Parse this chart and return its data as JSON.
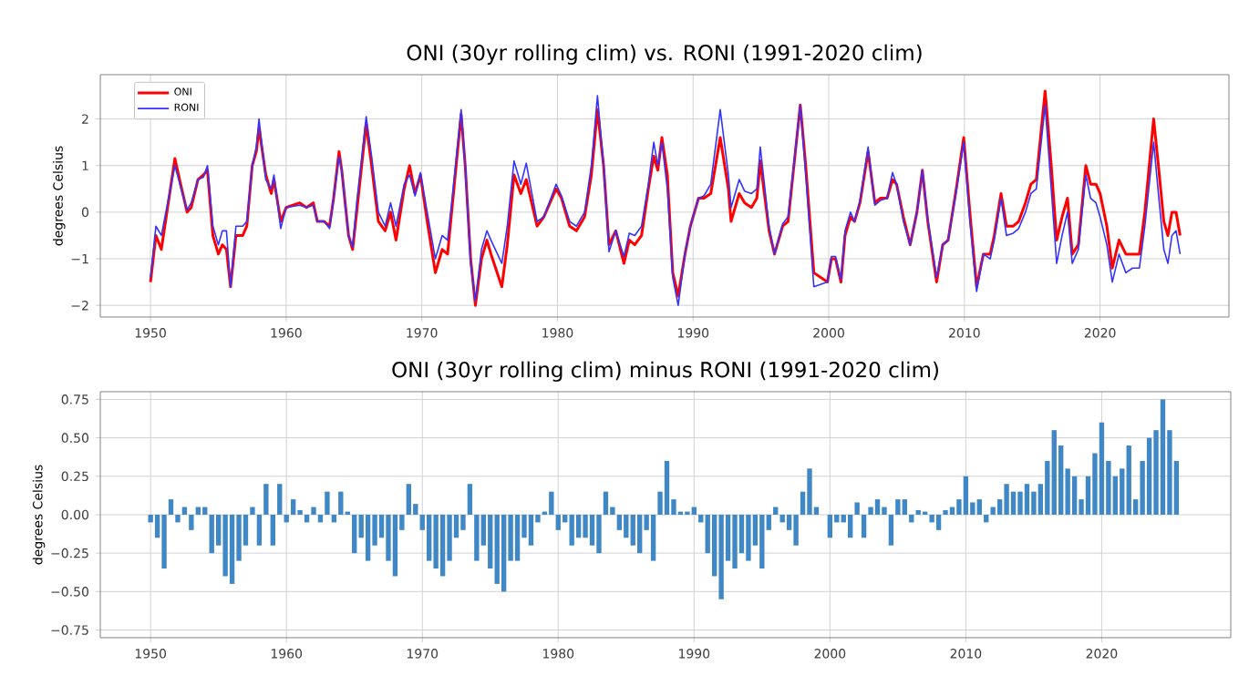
{
  "chart_data": [
    {
      "type": "line",
      "title": "ONI (30yr rolling clim) vs. RONI (1991-2020 clim)",
      "ylabel": "degrees Celsius",
      "grid": true,
      "legend": "top left",
      "xlim": [
        1946.3,
        2029.5
      ],
      "ylim": [
        -2.25,
        2.95
      ],
      "xticks": [
        1950,
        1960,
        1970,
        1980,
        1990,
        2000,
        2010,
        2020
      ],
      "yticks": [
        {
          "value": -2,
          "label": "−2"
        },
        {
          "value": -1,
          "label": "−1"
        },
        0,
        1,
        2
      ],
      "x": [
        1950.0,
        1950.4,
        1950.8,
        1951.8,
        1952.3,
        1952.7,
        1953.0,
        1953.5,
        1953.9,
        1954.2,
        1954.6,
        1955.0,
        1955.3,
        1955.6,
        1955.9,
        1956.3,
        1956.8,
        1957.1,
        1957.5,
        1957.8,
        1958.0,
        1958.5,
        1958.9,
        1959.1,
        1959.6,
        1960.0,
        1961.0,
        1961.5,
        1962.0,
        1962.3,
        1962.8,
        1963.2,
        1963.5,
        1963.9,
        1964.1,
        1964.6,
        1964.9,
        1965.2,
        1965.9,
        1966.3,
        1966.8,
        1967.3,
        1967.7,
        1968.1,
        1968.7,
        1969.1,
        1969.5,
        1969.9,
        1970.4,
        1971.0,
        1971.5,
        1971.9,
        1972.2,
        1972.9,
        1973.2,
        1973.6,
        1973.95,
        1974.4,
        1974.8,
        1975.1,
        1975.9,
        1976.3,
        1976.8,
        1977.3,
        1977.7,
        1978.5,
        1979.0,
        1979.9,
        1980.3,
        1980.9,
        1981.4,
        1982.0,
        1982.5,
        1982.95,
        1983.4,
        1983.8,
        1984.3,
        1984.9,
        1985.3,
        1985.7,
        1986.2,
        1986.7,
        1987.1,
        1987.4,
        1987.7,
        1988.1,
        1988.5,
        1988.9,
        1989.4,
        1989.8,
        1990.4,
        1990.8,
        1991.3,
        1992.0,
        1992.6,
        1992.8,
        1993.4,
        1993.8,
        1994.3,
        1994.7,
        1994.95,
        1995.6,
        1996.0,
        1996.6,
        1997.0,
        1997.9,
        1998.3,
        1998.9,
        1999.9,
        2000.2,
        2000.5,
        2000.9,
        2001.2,
        2001.6,
        2001.9,
        2002.3,
        2002.9,
        2003.4,
        2003.8,
        2004.3,
        2004.7,
        2005.0,
        2005.5,
        2006.0,
        2006.5,
        2006.9,
        2007.3,
        2007.95,
        2008.4,
        2008.8,
        2009.4,
        2009.95,
        2010.4,
        2010.9,
        2011.4,
        2011.9,
        2012.2,
        2012.7,
        2013.1,
        2013.6,
        2014.0,
        2014.5,
        2014.9,
        2015.3,
        2015.95,
        2016.4,
        2016.8,
        2017.2,
        2017.6,
        2017.95,
        2018.4,
        2018.95,
        2019.3,
        2019.7,
        2020.0,
        2020.5,
        2020.9,
        2021.4,
        2021.9,
        2022.4,
        2022.9,
        2023.3,
        2023.95,
        2024.3,
        2024.7,
        2025.0,
        2025.3,
        2025.6,
        2025.9
      ],
      "series": [
        {
          "name": "ONI",
          "color": "#ff0000",
          "values": [
            -1.5,
            -0.5,
            -0.8,
            1.15,
            0.5,
            0.0,
            0.1,
            0.7,
            0.8,
            0.9,
            -0.5,
            -0.9,
            -0.7,
            -0.8,
            -1.6,
            -0.5,
            -0.5,
            -0.3,
            1.0,
            1.3,
            1.8,
            0.8,
            0.4,
            0.7,
            -0.2,
            0.1,
            0.2,
            0.1,
            0.2,
            -0.2,
            -0.2,
            -0.3,
            0.3,
            1.3,
            0.9,
            -0.5,
            -0.8,
            0.0,
            1.9,
            1.0,
            -0.2,
            -0.4,
            0.0,
            -0.6,
            0.5,
            1.0,
            0.4,
            0.8,
            -0.2,
            -1.3,
            -0.8,
            -0.9,
            0.0,
            2.1,
            1.0,
            -1.0,
            -2.0,
            -1.0,
            -0.6,
            -0.9,
            -1.6,
            -0.7,
            0.8,
            0.4,
            0.7,
            -0.3,
            -0.1,
            0.5,
            0.3,
            -0.3,
            -0.4,
            -0.1,
            0.8,
            2.2,
            1.0,
            -0.7,
            -0.4,
            -1.1,
            -0.6,
            -0.7,
            -0.5,
            0.5,
            1.2,
            0.9,
            1.6,
            0.8,
            -1.3,
            -1.8,
            -0.9,
            -0.3,
            0.3,
            0.3,
            0.4,
            1.6,
            0.5,
            -0.2,
            0.4,
            0.2,
            0.1,
            0.3,
            1.1,
            -0.4,
            -0.9,
            -0.3,
            -0.2,
            2.3,
            1.0,
            -1.3,
            -1.5,
            -1.0,
            -1.0,
            -1.5,
            -0.5,
            -0.1,
            -0.2,
            0.2,
            1.3,
            0.2,
            0.3,
            0.3,
            0.7,
            0.6,
            -0.1,
            -0.7,
            0.0,
            0.9,
            -0.2,
            -1.5,
            -0.7,
            -0.6,
            0.5,
            1.6,
            0.0,
            -1.6,
            -0.9,
            -0.9,
            -0.5,
            0.4,
            -0.3,
            -0.3,
            -0.2,
            0.2,
            0.6,
            0.7,
            2.6,
            1.0,
            -0.6,
            -0.1,
            0.3,
            -0.9,
            -0.7,
            1.0,
            0.6,
            0.6,
            0.4,
            -0.3,
            -1.2,
            -0.6,
            -0.9,
            -0.9,
            -0.9,
            0.0,
            2.0,
            1.0,
            -0.2,
            -0.5,
            0.0,
            0.0,
            -0.5
          ]
        },
        {
          "name": "RONI",
          "color": "#3333ff",
          "values": [
            -1.4,
            -0.3,
            -0.5,
            1.0,
            0.45,
            0.05,
            0.2,
            0.7,
            0.75,
            1.0,
            -0.3,
            -0.7,
            -0.4,
            -0.4,
            -1.6,
            -0.3,
            -0.3,
            -0.2,
            1.0,
            1.4,
            2.0,
            0.7,
            0.5,
            0.8,
            -0.35,
            0.1,
            0.15,
            0.1,
            0.15,
            -0.2,
            -0.2,
            -0.35,
            0.3,
            1.2,
            0.9,
            -0.5,
            -0.75,
            0.2,
            2.05,
            1.2,
            0.0,
            -0.3,
            0.2,
            -0.3,
            0.6,
            0.8,
            0.35,
            0.85,
            0.0,
            -1.0,
            -0.5,
            -0.6,
            0.2,
            2.2,
            1.0,
            -1.1,
            -1.9,
            -0.8,
            -0.4,
            -0.6,
            -1.1,
            -0.3,
            1.1,
            0.6,
            1.05,
            -0.2,
            -0.1,
            0.6,
            0.35,
            -0.2,
            -0.3,
            0.0,
            1.0,
            2.5,
            1.0,
            -0.85,
            -0.4,
            -0.95,
            -0.45,
            -0.5,
            -0.3,
            0.6,
            1.5,
            1.0,
            1.5,
            0.5,
            -1.4,
            -2.0,
            -0.9,
            -0.3,
            0.3,
            0.35,
            0.6,
            2.2,
            0.8,
            0.1,
            0.7,
            0.45,
            0.4,
            0.5,
            1.4,
            -0.3,
            -0.9,
            -0.25,
            -0.1,
            2.3,
            0.8,
            -1.6,
            -1.5,
            -0.95,
            -0.95,
            -1.45,
            -0.4,
            0.0,
            -0.2,
            0.25,
            1.4,
            0.15,
            0.25,
            0.3,
            0.85,
            0.6,
            -0.2,
            -0.7,
            0.0,
            0.9,
            -0.15,
            -1.4,
            -0.7,
            -0.6,
            0.45,
            1.5,
            -0.2,
            -1.7,
            -0.9,
            -1.0,
            -0.6,
            0.3,
            -0.5,
            -0.45,
            -0.35,
            0.0,
            0.4,
            0.5,
            2.3,
            0.5,
            -1.1,
            -0.5,
            0.0,
            -1.1,
            -0.8,
            0.8,
            0.3,
            0.2,
            -0.1,
            -0.7,
            -1.5,
            -0.9,
            -1.3,
            -1.2,
            -1.2,
            -0.3,
            1.5,
            0.4,
            -0.8,
            -1.1,
            -0.5,
            -0.4,
            -0.9
          ]
        }
      ]
    },
    {
      "type": "bar",
      "title": "ONI (30yr rolling clim) minus RONI (1991-2020 clim)",
      "ylabel": "degrees Celsius",
      "grid": true,
      "color": "#3f88c5",
      "xlim": [
        1946.3,
        2029.5
      ],
      "ylim": [
        -0.8,
        0.8
      ],
      "xticks": [
        1950,
        1960,
        1970,
        1980,
        1990,
        2000,
        2010,
        2020
      ],
      "yticks": [
        {
          "value": -0.75,
          "label": "−0.75"
        },
        {
          "value": -0.5,
          "label": "−0.50"
        },
        {
          "value": -0.25,
          "label": "−0.25"
        },
        {
          "value": 0,
          "label": "0.00"
        },
        0.25,
        {
          "value": 0.5,
          "label": "0.50"
        },
        0.75
      ],
      "x": [
        1950.0,
        1950.5,
        1951.0,
        1951.5,
        1952.0,
        1952.5,
        1953.0,
        1953.5,
        1954.0,
        1954.5,
        1955.0,
        1955.5,
        1956.0,
        1956.5,
        1957.0,
        1957.5,
        1958.0,
        1958.5,
        1959.0,
        1959.5,
        1960.0,
        1960.5,
        1961.0,
        1961.5,
        1962.0,
        1962.5,
        1963.0,
        1963.5,
        1964.0,
        1964.5,
        1965.0,
        1965.5,
        1966.0,
        1966.5,
        1967.0,
        1967.5,
        1968.0,
        1968.5,
        1969.0,
        1969.5,
        1970.0,
        1970.5,
        1971.0,
        1971.5,
        1972.0,
        1972.5,
        1973.0,
        1973.5,
        1974.0,
        1974.5,
        1975.0,
        1975.5,
        1976.0,
        1976.5,
        1977.0,
        1977.5,
        1978.0,
        1978.5,
        1979.0,
        1979.5,
        1980.0,
        1980.5,
        1981.0,
        1981.5,
        1982.0,
        1982.5,
        1983.0,
        1983.5,
        1984.0,
        1984.5,
        1985.0,
        1985.5,
        1986.0,
        1986.5,
        1987.0,
        1987.5,
        1988.0,
        1988.5,
        1989.0,
        1989.5,
        1990.0,
        1990.5,
        1991.0,
        1991.5,
        1992.0,
        1992.5,
        1993.0,
        1993.5,
        1994.0,
        1994.5,
        1995.0,
        1995.5,
        1996.0,
        1996.5,
        1997.0,
        1997.5,
        1998.0,
        1998.5,
        1999.0,
        1999.5,
        2000.0,
        2000.5,
        2001.0,
        2001.5,
        2002.0,
        2002.5,
        2003.0,
        2003.5,
        2004.0,
        2004.5,
        2005.0,
        2005.5,
        2006.0,
        2006.5,
        2007.0,
        2007.5,
        2008.0,
        2008.5,
        2009.0,
        2009.5,
        2010.0,
        2010.5,
        2011.0,
        2011.5,
        2012.0,
        2012.5,
        2013.0,
        2013.5,
        2014.0,
        2014.5,
        2015.0,
        2015.5,
        2016.0,
        2016.5,
        2017.0,
        2017.5,
        2018.0,
        2018.5,
        2019.0,
        2019.5,
        2020.0,
        2020.5,
        2021.0,
        2021.5,
        2022.0,
        2022.5,
        2023.0,
        2023.5,
        2024.0,
        2024.5,
        2025.0,
        2025.5
      ],
      "values": [
        -0.05,
        -0.15,
        -0.35,
        0.1,
        -0.05,
        0.05,
        -0.1,
        0.05,
        0.05,
        -0.25,
        -0.2,
        -0.4,
        -0.45,
        -0.3,
        -0.2,
        0.05,
        -0.2,
        0.2,
        -0.2,
        0.2,
        -0.05,
        0.1,
        0.03,
        -0.05,
        0.05,
        -0.05,
        0.15,
        -0.05,
        0.15,
        0.02,
        -0.25,
        -0.15,
        -0.3,
        -0.2,
        -0.15,
        -0.3,
        -0.4,
        -0.1,
        0.2,
        0.07,
        -0.1,
        -0.3,
        -0.35,
        -0.4,
        -0.3,
        -0.15,
        -0.1,
        0.2,
        -0.3,
        -0.2,
        -0.35,
        -0.45,
        -0.5,
        -0.3,
        -0.3,
        -0.15,
        -0.2,
        -0.05,
        0.02,
        0.15,
        -0.1,
        -0.05,
        -0.2,
        -0.15,
        -0.15,
        -0.2,
        -0.25,
        0.15,
        0.05,
        -0.1,
        -0.15,
        -0.2,
        -0.25,
        -0.1,
        -0.3,
        0.15,
        0.35,
        0.1,
        0.02,
        0.02,
        0.05,
        -0.05,
        -0.25,
        -0.4,
        -0.55,
        -0.3,
        -0.35,
        -0.25,
        -0.3,
        -0.2,
        -0.35,
        -0.1,
        0.05,
        -0.05,
        -0.1,
        -0.2,
        0.15,
        0.3,
        0.05,
        0.0,
        -0.15,
        -0.05,
        -0.05,
        -0.15,
        0.08,
        -0.15,
        0.05,
        0.1,
        0.05,
        -0.2,
        0.1,
        0.1,
        -0.05,
        0.03,
        0.02,
        -0.05,
        -0.1,
        0.03,
        0.05,
        0.1,
        0.25,
        0.08,
        0.1,
        -0.05,
        0.05,
        0.1,
        0.2,
        0.15,
        0.15,
        0.2,
        0.15,
        0.2,
        0.35,
        0.55,
        0.45,
        0.3,
        0.25,
        0.1,
        0.25,
        0.4,
        0.6,
        0.35,
        0.25,
        0.3,
        0.45,
        0.1,
        0.35,
        0.5,
        0.55,
        0.75,
        0.55,
        0.35
      ]
    }
  ]
}
